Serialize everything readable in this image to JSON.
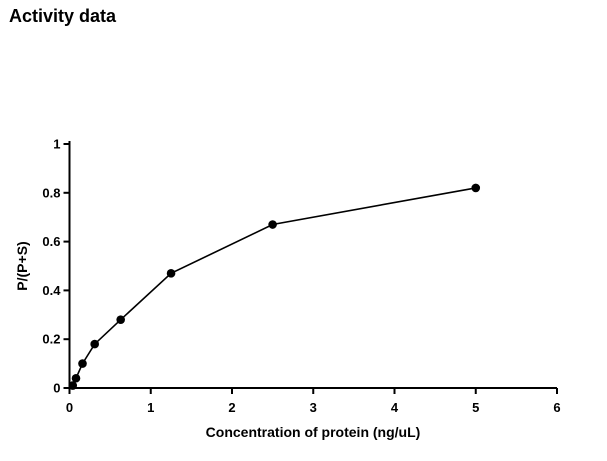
{
  "chart_data": {
    "type": "line",
    "title": "Activity data",
    "xlabel": "Concentration of protein (ng/uL)",
    "ylabel": "P/(P+S)",
    "x": [
      0.04,
      0.08,
      0.16,
      0.31,
      0.63,
      1.25,
      2.5,
      5.0
    ],
    "y": [
      0.01,
      0.04,
      0.1,
      0.18,
      0.28,
      0.47,
      0.67,
      0.82
    ],
    "xlim": [
      0,
      6
    ],
    "ylim": [
      0,
      1
    ],
    "xticks": [
      0,
      1,
      2,
      3,
      4,
      5,
      6
    ],
    "yticks": [
      0,
      0.2,
      0.4,
      0.6,
      0.8,
      1
    ],
    "grid": false,
    "legend": "none",
    "marker": "filled-circle",
    "line_color": "#000000",
    "marker_color": "#000000",
    "axis_color": "#000000",
    "background": "#ffffff"
  }
}
